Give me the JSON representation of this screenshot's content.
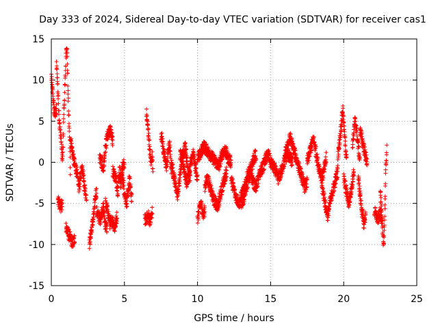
{
  "chart_data": {
    "type": "scatter",
    "title": "Day 333 of 2024, Sidereal Day-to-day VTEC variation (SDTVAR) for receiver cas1",
    "xlabel": "GPS time / hours",
    "ylabel": "SDTVAR / TECUs",
    "xlim": [
      0,
      25
    ],
    "ylim": [
      -15,
      15
    ],
    "xticks": [
      0,
      5,
      10,
      15,
      20,
      25
    ],
    "yticks": [
      -15,
      -10,
      -5,
      0,
      5,
      10,
      15
    ],
    "xtick_labels": [
      "0",
      "5",
      "10",
      "15",
      "20",
      "25"
    ],
    "ytick_labels": [
      "-15",
      "-10",
      "-5",
      "0",
      "5",
      "10",
      "15"
    ],
    "grid": true,
    "marker": "+",
    "series_color": "#ff0000",
    "segments": [
      {
        "x0": 0.0,
        "x1": 0.35,
        "y": [
          10.5,
          9.0,
          8.5,
          7.0,
          6.0,
          6.2,
          5.8,
          6.5
        ]
      },
      {
        "x0": 0.35,
        "x1": 0.75,
        "y": [
          11.8,
          10.5,
          8.0,
          6.0,
          4.0,
          3.5,
          2.0,
          0.5
        ]
      },
      {
        "x0": 0.45,
        "x1": 0.75,
        "y": [
          -4.8,
          -5.0,
          -5.2,
          -5.4,
          -5.0
        ]
      },
      {
        "x0": 0.75,
        "x1": 1.3,
        "y": [
          0.0,
          1.5,
          6.0,
          8.0,
          10.0,
          13.0,
          14.5,
          12.0,
          8.0,
          5.0,
          3.0,
          -1.0
        ]
      },
      {
        "x0": 1.0,
        "x1": 1.6,
        "y": [
          -7.8,
          -8.5,
          -9.0,
          -9.5,
          -9.8,
          -9.2
        ]
      },
      {
        "x0": 1.3,
        "x1": 2.4,
        "y": [
          3.0,
          2.0,
          1.0,
          0.0,
          -0.5,
          -1.0,
          -2.0,
          -3.0,
          -2.0,
          -1.0,
          -0.5,
          -2.5,
          -3.5,
          -4.0
        ]
      },
      {
        "x0": 2.6,
        "x1": 3.1,
        "y": [
          -10.0,
          -9.0,
          -8.0,
          -7.0,
          -6.0,
          -4.0,
          -3.5
        ]
      },
      {
        "x0": 3.1,
        "x1": 3.8,
        "y": [
          -6.0,
          -6.5,
          -7.0,
          -6.0,
          -5.5,
          -7.5,
          -8.0
        ]
      },
      {
        "x0": 3.3,
        "x1": 4.2,
        "y": [
          0.5,
          0.0,
          -1.0,
          1.5,
          3.0,
          3.5,
          4.0,
          2.5
        ]
      },
      {
        "x0": 3.7,
        "x1": 4.5,
        "y": [
          -5.0,
          -6.0,
          -7.5,
          -7.0,
          -8.0,
          -6.5
        ]
      },
      {
        "x0": 4.2,
        "x1": 5.0,
        "y": [
          -1.0,
          -1.5,
          -2.0,
          -3.5,
          -1.0,
          -2.0,
          -0.5,
          0.0
        ]
      },
      {
        "x0": 4.7,
        "x1": 5.5,
        "y": [
          -3.0,
          -1.5,
          -4.0,
          -5.0,
          -2.0,
          -4.5
        ]
      },
      {
        "x0": 6.4,
        "x1": 6.9,
        "y": [
          -7.0,
          -6.8,
          -6.5,
          -7.2,
          -6.0
        ]
      },
      {
        "x0": 6.5,
        "x1": 6.95,
        "y": [
          6.0,
          5.0,
          4.0,
          3.0,
          1.5,
          0.5,
          0.0,
          1.0,
          -1.0
        ]
      },
      {
        "x0": 7.5,
        "x1": 8.2,
        "y": [
          3.5,
          2.5,
          1.0,
          0.0,
          -0.5,
          1.5,
          2.0,
          -1.0
        ]
      },
      {
        "x0": 8.2,
        "x1": 9.5,
        "y": [
          0.0,
          -1.0,
          -2.0,
          -3.0,
          -4.0,
          -2.5,
          -1.0,
          0.5,
          1.5,
          2.0,
          0.0,
          -1.5,
          -2.0
        ]
      },
      {
        "x0": 8.8,
        "x1": 10.0,
        "y": [
          1.0,
          0.5,
          -1.0,
          -2.5,
          -1.5,
          0.0,
          1.0,
          -0.5,
          -2.0
        ]
      },
      {
        "x0": 10.0,
        "x1": 10.5,
        "y": [
          -7.0,
          -6.0,
          -5.0,
          -5.5,
          -6.5,
          -5.8
        ]
      },
      {
        "x0": 10.5,
        "x1": 12.0,
        "y": [
          -3.0,
          -2.0,
          -2.5,
          -3.5,
          -4.5,
          -5.0,
          -5.5,
          -4.0,
          -3.0,
          -2.0,
          -1.0
        ]
      },
      {
        "x0": 10.0,
        "x1": 12.3,
        "y": [
          0.5,
          1.0,
          2.0,
          1.5,
          1.0,
          0.5,
          0.0,
          -0.5,
          1.0,
          1.5,
          0.5,
          0.0
        ]
      },
      {
        "x0": 12.3,
        "x1": 14.0,
        "y": [
          -2.0,
          -3.0,
          -4.0,
          -4.5,
          -5.0,
          -4.0,
          -3.5,
          -2.5,
          -1.5,
          -1.0,
          -0.5,
          0.5,
          1.0
        ]
      },
      {
        "x0": 13.0,
        "x1": 15.0,
        "y": [
          -5.0,
          -4.5,
          -3.0,
          -2.0,
          -1.5,
          -2.5,
          -3.0,
          -2.0,
          -1.0,
          -0.5,
          0.5,
          1.0,
          0.0
        ]
      },
      {
        "x0": 15.0,
        "x1": 16.5,
        "y": [
          0.0,
          -0.5,
          -1.0,
          -2.0,
          -1.5,
          -0.5,
          0.5,
          1.0,
          0.5,
          0.0
        ]
      },
      {
        "x0": 16.0,
        "x1": 17.5,
        "y": [
          1.0,
          2.0,
          3.0,
          2.0,
          1.0,
          0.0,
          -1.0,
          -2.0,
          -3.0,
          -2.5
        ]
      },
      {
        "x0": 17.5,
        "x1": 18.8,
        "y": [
          0.0,
          1.0,
          2.0,
          2.8,
          1.5,
          0.0,
          -1.0,
          -2.0,
          -1.0,
          0.5
        ]
      },
      {
        "x0": 18.5,
        "x1": 19.6,
        "y": [
          -3.0,
          -4.0,
          -5.5,
          -6.5,
          -5.0,
          -4.0,
          -3.0,
          -2.0,
          -1.0
        ]
      },
      {
        "x0": 19.6,
        "x1": 20.2,
        "y": [
          1.0,
          2.0,
          3.5,
          5.0,
          6.5,
          4.0,
          2.0,
          0.5
        ]
      },
      {
        "x0": 20.0,
        "x1": 20.7,
        "y": [
          -2.0,
          -3.0,
          -4.0,
          -5.0,
          -4.0,
          -2.5,
          -1.0
        ]
      },
      {
        "x0": 20.6,
        "x1": 21.1,
        "y": [
          2.0,
          3.5,
          5.0,
          4.5,
          3.0,
          1.5,
          0.5
        ]
      },
      {
        "x0": 21.0,
        "x1": 21.5,
        "y": [
          -2.0,
          -4.0,
          -6.0,
          -7.5,
          -6.5
        ]
      },
      {
        "x0": 21.1,
        "x1": 21.6,
        "y": [
          4.0,
          3.0,
          2.0,
          1.0,
          0.0
        ]
      },
      {
        "x0": 22.1,
        "x1": 22.6,
        "y": [
          -6.0,
          -6.5,
          -7.0,
          -6.2,
          -6.8
        ]
      },
      {
        "x0": 22.5,
        "x1": 22.95,
        "y": [
          -3.0,
          -5.0,
          -7.0,
          -9.0,
          -10.0,
          -8.0,
          -4.0,
          0.0,
          1.5
        ]
      }
    ]
  }
}
